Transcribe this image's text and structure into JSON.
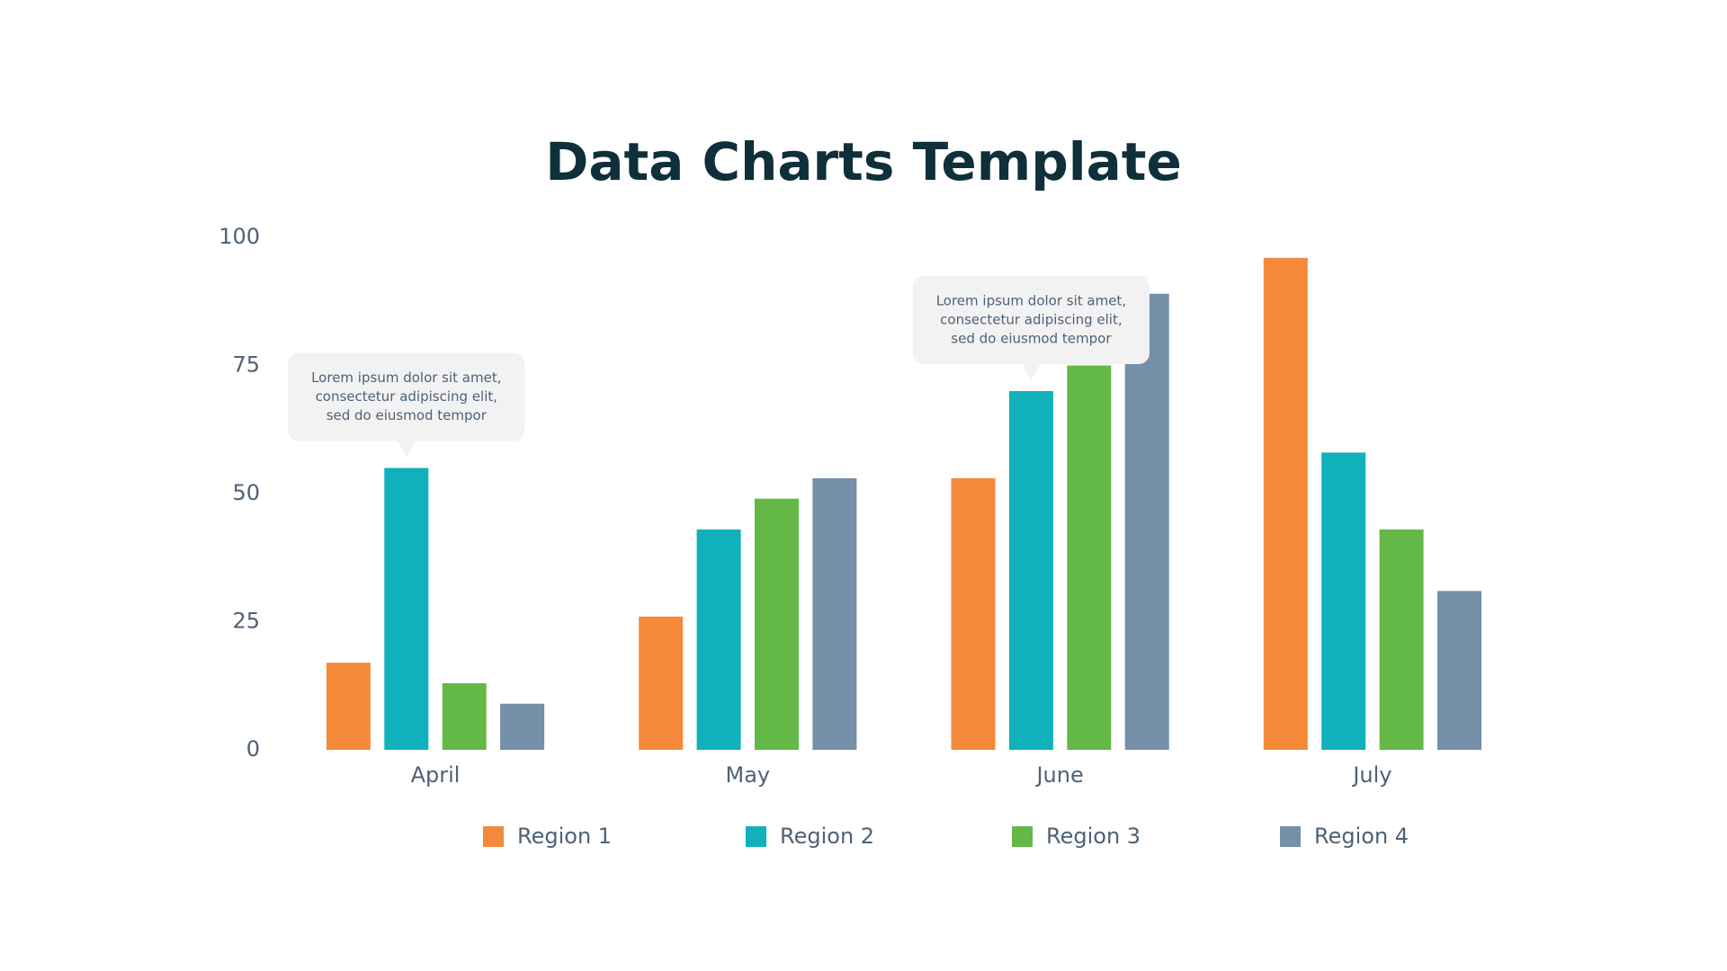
{
  "chart_data": {
    "type": "bar",
    "title": "Data Charts Template",
    "categories": [
      "April",
      "May",
      "June",
      "July"
    ],
    "series": [
      {
        "name": "Region 1",
        "color": "#f5893a",
        "values": [
          17,
          26,
          53,
          96
        ]
      },
      {
        "name": "Region 2",
        "color": "#10b1bb",
        "values": [
          55,
          43,
          70,
          58
        ]
      },
      {
        "name": "Region 3",
        "color": "#64b845",
        "values": [
          13,
          49,
          75,
          43
        ]
      },
      {
        "name": "Region 4",
        "color": "#7590a8",
        "values": [
          9,
          53,
          89,
          31
        ]
      }
    ],
    "ylim": [
      0,
      100
    ],
    "yticks": [
      0,
      25,
      50,
      75,
      100
    ],
    "grid": false,
    "legend": "bottom",
    "annotations": [
      {
        "lines": [
          "Lorem ipsum dolor sit amet,",
          "consectetur adipiscing elit,",
          "sed do eiusmod tempor"
        ]
      },
      {
        "lines": [
          "Lorem ipsum dolor sit amet,",
          "consectetur adipiscing elit,",
          "sed do eiusmod tempor"
        ]
      }
    ]
  }
}
